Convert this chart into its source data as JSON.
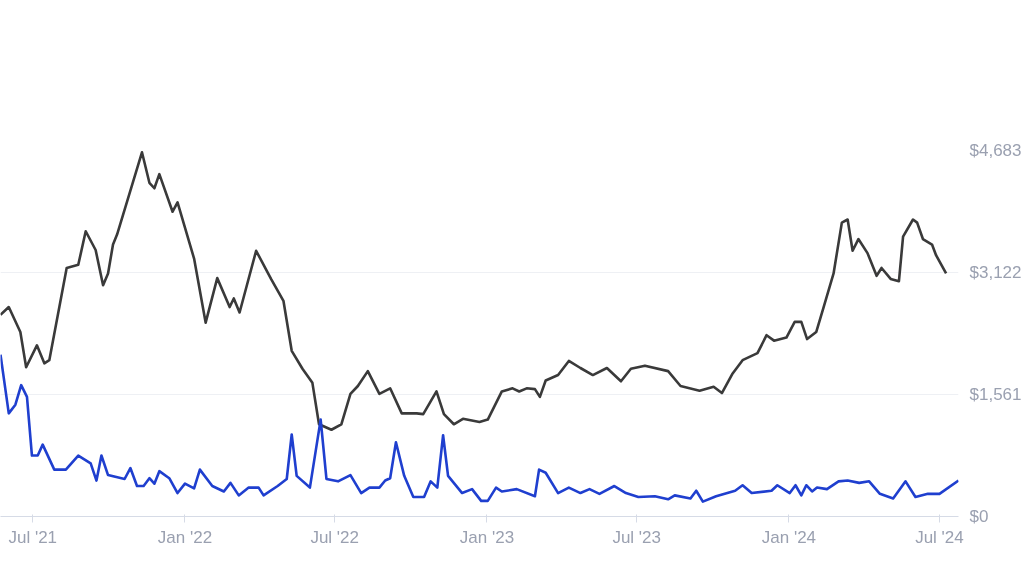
{
  "chart_data": {
    "type": "line",
    "xlim": [
      "2021-05-23",
      "2024-07-24"
    ],
    "ylim": [
      0,
      4683
    ],
    "xticks": [
      {
        "value": "2021-07-01",
        "label": "Jul '21"
      },
      {
        "value": "2022-01-01",
        "label": "Jan '22"
      },
      {
        "value": "2022-07-01",
        "label": "Jul '22"
      },
      {
        "value": "2023-01-01",
        "label": "Jan '23"
      },
      {
        "value": "2023-07-01",
        "label": "Jul '23"
      },
      {
        "value": "2024-01-01",
        "label": "Jan '24"
      },
      {
        "value": "2024-07-01",
        "label": "Jul '24"
      }
    ],
    "yticks": [
      {
        "value": 0,
        "label": "$0"
      },
      {
        "value": 1561,
        "label": "$1,561"
      },
      {
        "value": 3122,
        "label": "$3,122"
      },
      {
        "value": 4683,
        "label": "$4,683"
      }
    ],
    "grid": "y",
    "marker": "none",
    "line_style": "solid",
    "series": [
      {
        "color": "#3a3a3a",
        "x": [
          "2021-05-23",
          "2021-06-02",
          "2021-06-16",
          "2021-06-23",
          "2021-07-06",
          "2021-07-15",
          "2021-07-21",
          "2021-08-11",
          "2021-08-25",
          "2021-09-03",
          "2021-09-15",
          "2021-09-24",
          "2021-09-30",
          "2021-10-06",
          "2021-10-11",
          "2021-11-10",
          "2021-11-19",
          "2021-11-25",
          "2021-12-01",
          "2021-12-17",
          "2021-12-23",
          "2022-01-12",
          "2022-01-26",
          "2022-02-09",
          "2022-02-24",
          "2022-03-01",
          "2022-03-08",
          "2022-03-28",
          "2022-04-15",
          "2022-04-30",
          "2022-05-10",
          "2022-05-23",
          "2022-06-04",
          "2022-06-12",
          "2022-06-27",
          "2022-07-09",
          "2022-07-20",
          "2022-07-29",
          "2022-08-10",
          "2022-08-24",
          "2022-09-06",
          "2022-09-20",
          "2022-10-08",
          "2022-10-16",
          "2022-11-01",
          "2022-11-10",
          "2022-11-22",
          "2022-12-03",
          "2022-12-23",
          "2023-01-02",
          "2023-01-19",
          "2023-02-01",
          "2023-02-09",
          "2023-02-18",
          "2023-02-28",
          "2023-03-06",
          "2023-03-13",
          "2023-03-28",
          "2023-04-10",
          "2023-04-24",
          "2023-05-09",
          "2023-05-26",
          "2023-06-12",
          "2023-06-24",
          "2023-07-11",
          "2023-08-08",
          "2023-08-23",
          "2023-09-15",
          "2023-10-02",
          "2023-10-12",
          "2023-10-25",
          "2023-11-06",
          "2023-11-24",
          "2023-12-05",
          "2023-12-14",
          "2023-12-29",
          "2024-01-08",
          "2024-01-16",
          "2024-01-23",
          "2024-02-03",
          "2024-02-12",
          "2024-02-24",
          "2024-03-05",
          "2024-03-12",
          "2024-03-18",
          "2024-03-25",
          "2024-04-05",
          "2024-04-16",
          "2024-04-22",
          "2024-05-03",
          "2024-05-13",
          "2024-05-18",
          "2024-05-30",
          "2024-06-04",
          "2024-06-11",
          "2024-06-22",
          "2024-06-27",
          "2024-07-09"
        ],
        "values": [
          2580,
          2680,
          2360,
          1910,
          2190,
          1960,
          2000,
          3180,
          3220,
          3650,
          3410,
          2960,
          3110,
          3480,
          3610,
          4660,
          4270,
          4200,
          4380,
          3900,
          4020,
          3300,
          2480,
          3050,
          2680,
          2790,
          2610,
          3400,
          3040,
          2760,
          2120,
          1890,
          1710,
          1180,
          1110,
          1180,
          1570,
          1670,
          1860,
          1570,
          1640,
          1320,
          1320,
          1310,
          1600,
          1310,
          1180,
          1250,
          1210,
          1240,
          1600,
          1640,
          1600,
          1640,
          1630,
          1530,
          1740,
          1810,
          1990,
          1900,
          1810,
          1900,
          1730,
          1890,
          1930,
          1860,
          1670,
          1610,
          1660,
          1580,
          1830,
          2000,
          2090,
          2320,
          2250,
          2290,
          2490,
          2490,
          2270,
          2360,
          2680,
          3110,
          3760,
          3800,
          3400,
          3550,
          3370,
          3080,
          3180,
          3040,
          3010,
          3580,
          3800,
          3760,
          3550,
          3480,
          3340,
          3110
        ]
      },
      {
        "color": "#1f3fcf",
        "x": [
          "2021-05-23",
          "2021-06-02",
          "2021-06-10",
          "2021-06-17",
          "2021-06-24",
          "2021-06-30",
          "2021-07-07",
          "2021-07-13",
          "2021-07-27",
          "2021-08-10",
          "2021-08-25",
          "2021-09-09",
          "2021-09-16",
          "2021-09-22",
          "2021-09-30",
          "2021-10-20",
          "2021-10-27",
          "2021-11-04",
          "2021-11-12",
          "2021-11-19",
          "2021-11-25",
          "2021-12-01",
          "2021-12-13",
          "2021-12-23",
          "2022-01-01",
          "2022-01-12",
          "2022-01-19",
          "2022-02-03",
          "2022-02-17",
          "2022-02-25",
          "2022-03-07",
          "2022-03-19",
          "2022-03-31",
          "2022-04-06",
          "2022-04-23",
          "2022-05-04",
          "2022-05-10",
          "2022-05-16",
          "2022-06-01",
          "2022-06-14",
          "2022-06-21",
          "2022-07-05",
          "2022-07-20",
          "2022-08-02",
          "2022-08-12",
          "2022-08-24",
          "2022-08-31",
          "2022-09-06",
          "2022-09-13",
          "2022-09-23",
          "2022-10-04",
          "2022-10-17",
          "2022-10-25",
          "2022-11-02",
          "2022-11-09",
          "2022-11-15",
          "2022-12-02",
          "2022-12-14",
          "2022-12-25",
          "2023-01-02",
          "2023-01-12",
          "2023-01-19",
          "2023-02-06",
          "2023-02-28",
          "2023-03-05",
          "2023-03-13",
          "2023-03-28",
          "2023-04-10",
          "2023-04-24",
          "2023-05-05",
          "2023-05-17",
          "2023-06-04",
          "2023-06-18",
          "2023-07-03",
          "2023-07-23",
          "2023-08-08",
          "2023-08-16",
          "2023-09-04",
          "2023-09-11",
          "2023-09-19",
          "2023-10-05",
          "2023-10-28",
          "2023-11-06",
          "2023-11-17",
          "2023-12-11",
          "2023-12-18",
          "2024-01-02",
          "2024-01-09",
          "2024-01-16",
          "2024-01-22",
          "2024-01-29",
          "2024-02-04",
          "2024-02-16",
          "2024-03-01",
          "2024-03-12",
          "2024-03-26",
          "2024-04-07",
          "2024-04-20",
          "2024-05-06",
          "2024-05-21",
          "2024-06-02",
          "2024-06-17",
          "2024-07-01",
          "2024-07-24"
        ],
        "values": [
          2070,
          1320,
          1430,
          1680,
          1530,
          780,
          780,
          920,
          600,
          600,
          780,
          680,
          460,
          780,
          530,
          480,
          620,
          390,
          390,
          490,
          420,
          580,
          490,
          300,
          420,
          360,
          600,
          390,
          320,
          430,
          270,
          370,
          370,
          270,
          390,
          480,
          1050,
          520,
          370,
          1240,
          480,
          450,
          530,
          300,
          370,
          370,
          460,
          490,
          950,
          520,
          250,
          250,
          450,
          370,
          1040,
          520,
          300,
          350,
          200,
          200,
          370,
          320,
          350,
          260,
          600,
          560,
          300,
          370,
          300,
          350,
          290,
          390,
          300,
          250,
          260,
          220,
          270,
          230,
          330,
          190,
          260,
          330,
          400,
          300,
          330,
          400,
          300,
          400,
          270,
          400,
          320,
          370,
          350,
          450,
          460,
          430,
          450,
          290,
          230,
          450,
          250,
          290,
          290,
          460
        ]
      }
    ]
  }
}
